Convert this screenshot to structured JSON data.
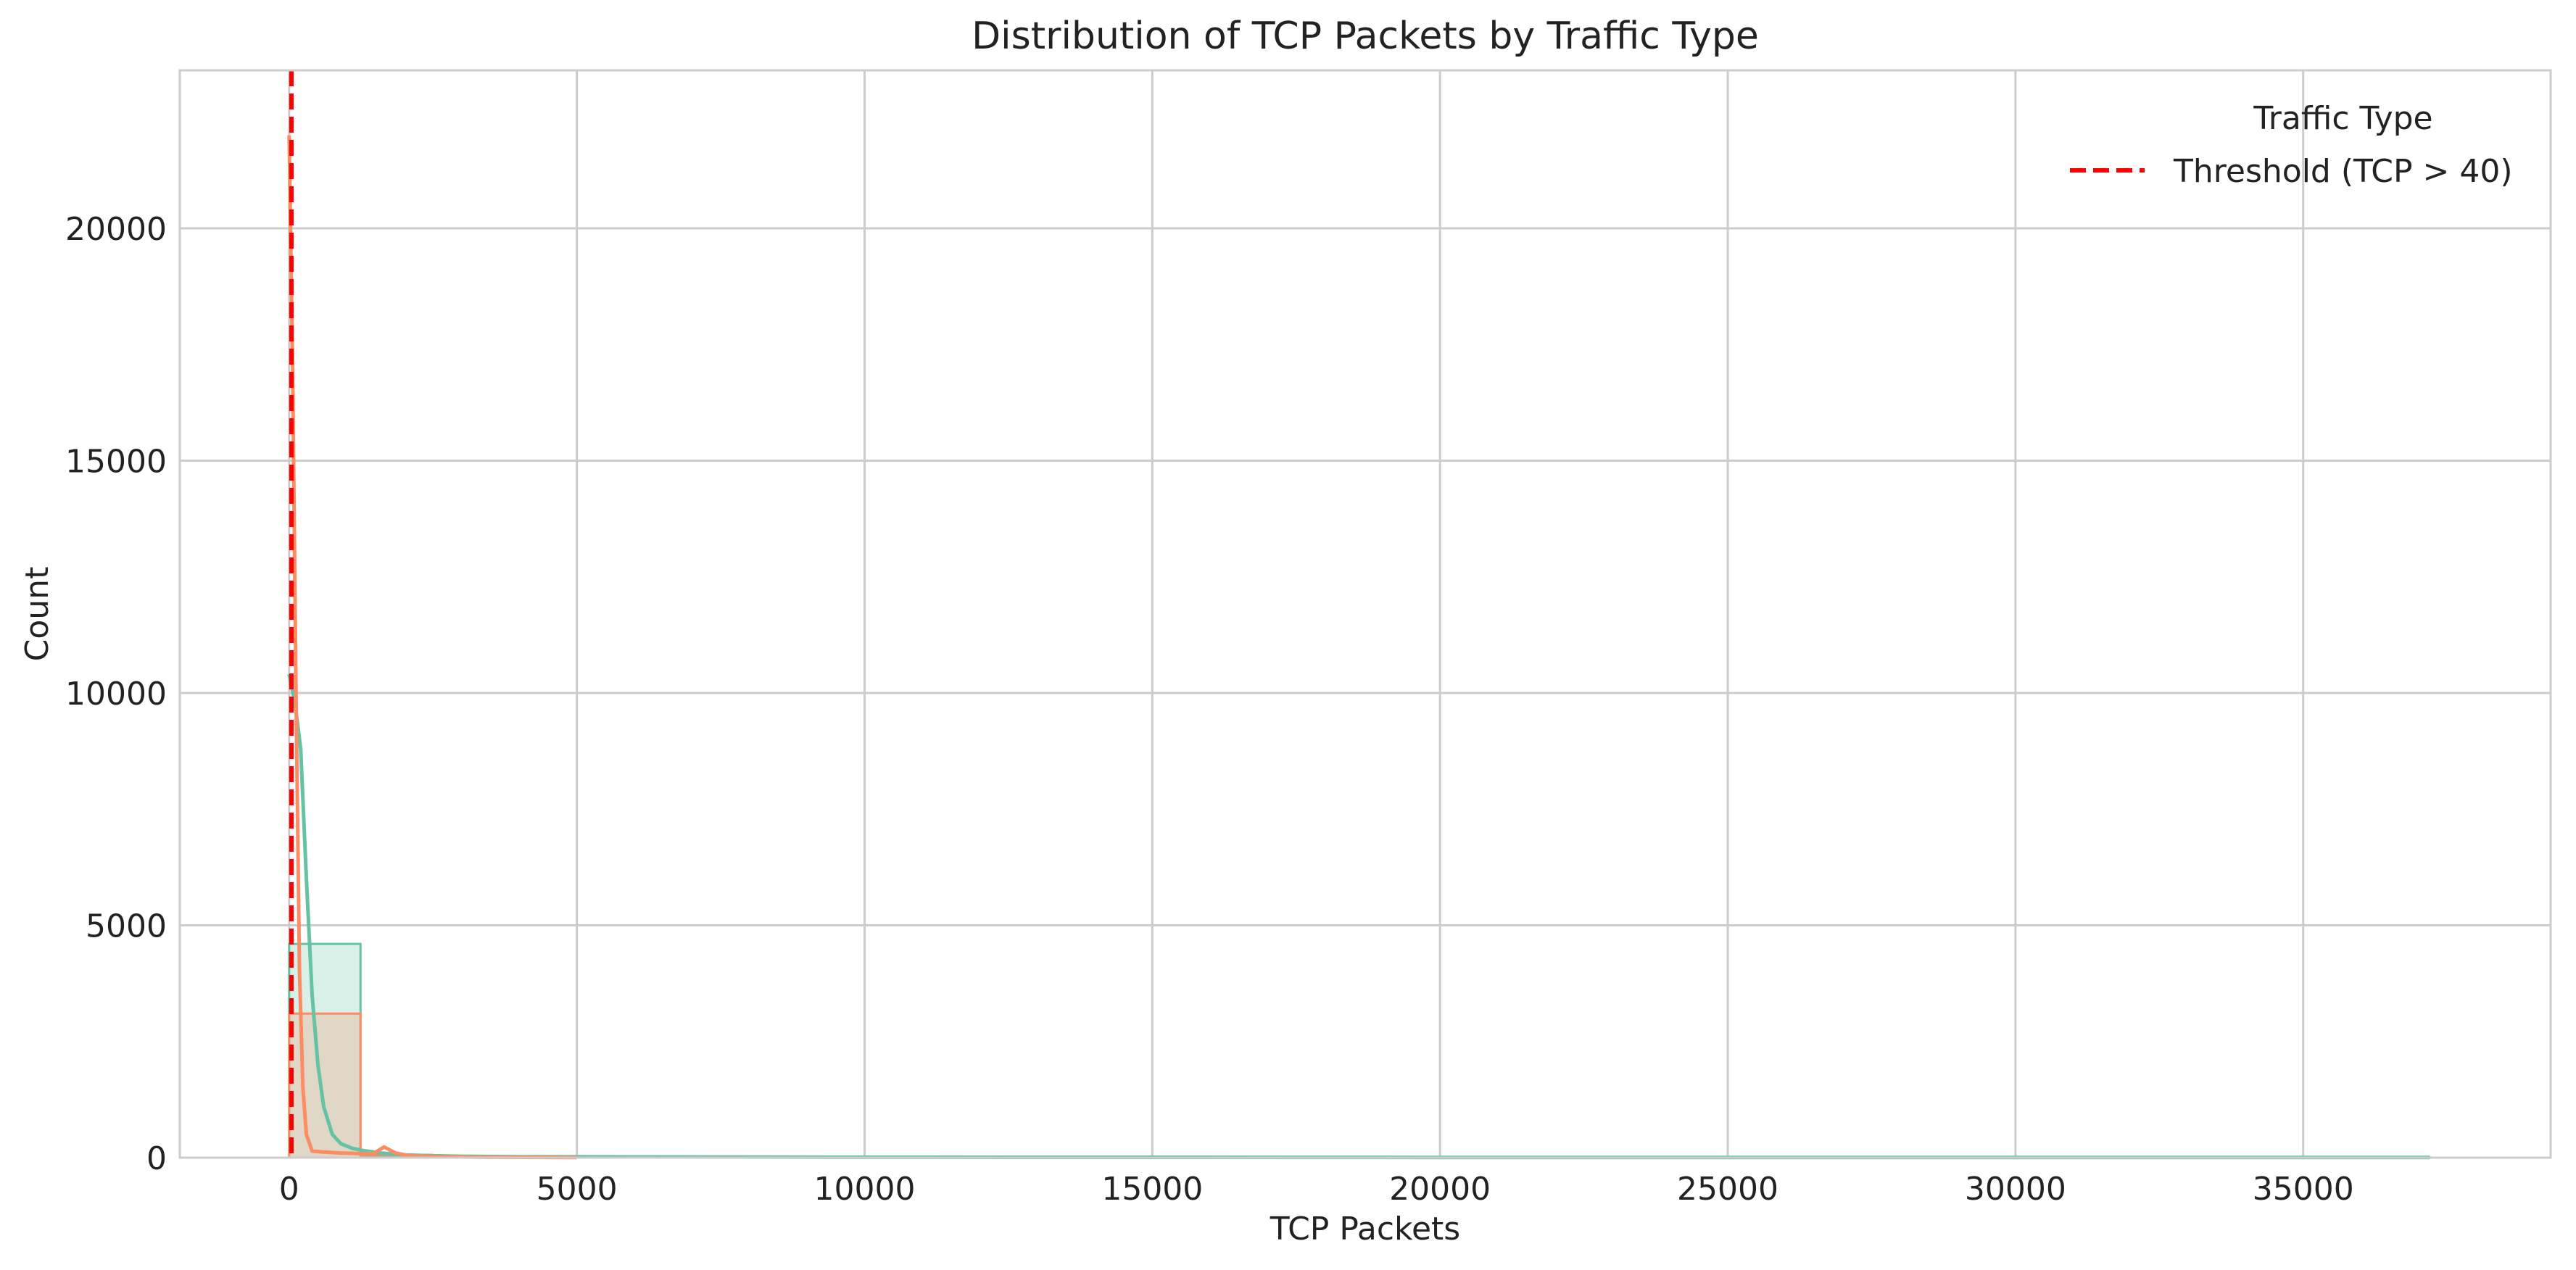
{
  "chart_data": {
    "type": "histogram",
    "title": "Distribution of TCP Packets by Traffic Type",
    "xlabel": "TCP Packets",
    "ylabel": "Count",
    "xlim": [
      -1900,
      39300
    ],
    "ylim": [
      0,
      23400
    ],
    "xticks": [
      0,
      5000,
      10000,
      15000,
      20000,
      25000,
      30000,
      35000
    ],
    "yticks": [
      0,
      5000,
      10000,
      15000,
      20000
    ],
    "grid": true,
    "legend": {
      "title": "Traffic Type",
      "position": "top-right",
      "entries": [
        {
          "label": "Threshold (TCP > 40)",
          "color": "#ff0000",
          "style": "dashed"
        }
      ]
    },
    "threshold": {
      "x": 40,
      "color": "#ff0000",
      "style": "dashed"
    },
    "series": [
      {
        "color": "#66c2a5",
        "bins": [
          {
            "x0": 0,
            "x1": 1240,
            "count": 4600
          },
          {
            "x0": 1240,
            "x1": 2480,
            "count": 40
          },
          {
            "x0": 2480,
            "x1": 3720,
            "count": 15
          },
          {
            "x0": 3720,
            "x1": 37200,
            "count": 5
          }
        ],
        "kde": [
          [
            0,
            10400
          ],
          [
            100,
            9800
          ],
          [
            200,
            8800
          ],
          [
            300,
            6000
          ],
          [
            400,
            3500
          ],
          [
            500,
            2000
          ],
          [
            600,
            1100
          ],
          [
            750,
            500
          ],
          [
            900,
            300
          ],
          [
            1100,
            200
          ],
          [
            1300,
            150
          ],
          [
            1600,
            100
          ],
          [
            2000,
            60
          ],
          [
            2500,
            40
          ],
          [
            3000,
            30
          ],
          [
            4000,
            20
          ],
          [
            6000,
            15
          ],
          [
            10000,
            10
          ],
          [
            15000,
            8
          ],
          [
            20000,
            5
          ],
          [
            25000,
            5
          ],
          [
            30000,
            5
          ],
          [
            37200,
            5
          ]
        ]
      },
      {
        "color": "#fc8d62",
        "bins": [
          {
            "x0": 0,
            "x1": 1240,
            "count": 3100
          },
          {
            "x0": 1240,
            "x1": 2480,
            "count": 60
          },
          {
            "x0": 2480,
            "x1": 3720,
            "count": 5
          }
        ],
        "kde": [
          [
            0,
            22000
          ],
          [
            60,
            17000
          ],
          [
            120,
            10000
          ],
          [
            180,
            4000
          ],
          [
            240,
            1500
          ],
          [
            300,
            500
          ],
          [
            400,
            140
          ],
          [
            600,
            120
          ],
          [
            900,
            100
          ],
          [
            1200,
            90
          ],
          [
            1450,
            80
          ],
          [
            1650,
            230
          ],
          [
            1850,
            100
          ],
          [
            2100,
            40
          ],
          [
            2600,
            20
          ],
          [
            3500,
            10
          ],
          [
            5000,
            5
          ]
        ]
      }
    ]
  }
}
